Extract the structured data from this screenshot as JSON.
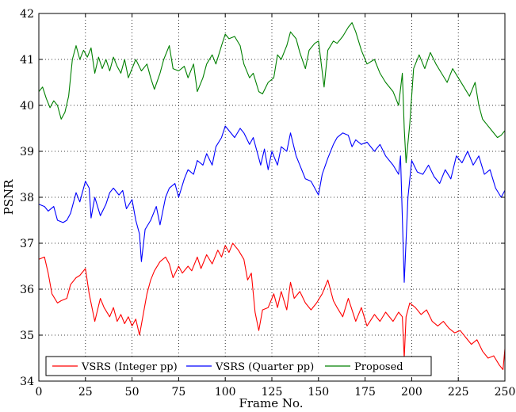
{
  "chart_data": {
    "type": "line",
    "xlabel": "Frame No.",
    "ylabel": "PSNR",
    "xlim": [
      0,
      250
    ],
    "ylim": [
      34,
      42
    ],
    "xticks": [
      0,
      25,
      50,
      75,
      100,
      125,
      150,
      175,
      200,
      225,
      250
    ],
    "yticks": [
      34,
      35,
      36,
      37,
      38,
      39,
      40,
      41,
      42
    ],
    "grid": true,
    "legend_position": "bottom",
    "series": [
      {
        "name": "VSRS (Integer pp)",
        "color": "#ff0000",
        "x": [
          0,
          3,
          5,
          7,
          10,
          12,
          15,
          17,
          20,
          22,
          25,
          27,
          30,
          33,
          35,
          38,
          40,
          42,
          44,
          46,
          48,
          50,
          52,
          54,
          56,
          58,
          60,
          62,
          65,
          68,
          70,
          72,
          75,
          77,
          80,
          82,
          85,
          87,
          90,
          93,
          96,
          98,
          100,
          102,
          104,
          107,
          110,
          112,
          114,
          116,
          118,
          120,
          123,
          126,
          128,
          130,
          133,
          135,
          137,
          140,
          143,
          146,
          149,
          152,
          155,
          158,
          160,
          163,
          166,
          170,
          173,
          176,
          180,
          183,
          186,
          190,
          193,
          195,
          196,
          197,
          199,
          202,
          205,
          208,
          211,
          214,
          217,
          220,
          223,
          226,
          229,
          232,
          235,
          238,
          241,
          244,
          247,
          249,
          250
        ],
        "values": [
          36.65,
          36.7,
          36.35,
          35.9,
          35.7,
          35.75,
          35.8,
          36.1,
          36.25,
          36.3,
          36.45,
          35.9,
          35.3,
          35.8,
          35.6,
          35.4,
          35.6,
          35.3,
          35.45,
          35.25,
          35.4,
          35.2,
          35.35,
          35.0,
          35.45,
          35.9,
          36.2,
          36.4,
          36.6,
          36.7,
          36.55,
          36.25,
          36.5,
          36.35,
          36.5,
          36.4,
          36.7,
          36.45,
          36.75,
          36.55,
          36.85,
          36.7,
          36.95,
          36.8,
          37.0,
          36.85,
          36.65,
          36.2,
          36.35,
          35.5,
          35.1,
          35.55,
          35.6,
          35.9,
          35.6,
          35.95,
          35.55,
          36.15,
          35.8,
          35.95,
          35.7,
          35.55,
          35.7,
          35.9,
          36.2,
          35.75,
          35.6,
          35.4,
          35.8,
          35.3,
          35.6,
          35.2,
          35.45,
          35.3,
          35.5,
          35.3,
          35.5,
          35.4,
          34.5,
          35.4,
          35.7,
          35.6,
          35.45,
          35.55,
          35.3,
          35.2,
          35.3,
          35.15,
          35.05,
          35.1,
          34.95,
          34.8,
          34.9,
          34.65,
          34.5,
          34.55,
          34.35,
          34.25,
          34.7
        ]
      },
      {
        "name": "VSRS (Quarter pp)",
        "color": "#0000ff",
        "x": [
          0,
          3,
          5,
          8,
          10,
          13,
          15,
          17,
          20,
          22,
          25,
          27,
          28,
          30,
          33,
          36,
          38,
          40,
          43,
          45,
          47,
          50,
          52,
          54,
          55,
          57,
          60,
          63,
          65,
          68,
          70,
          73,
          75,
          78,
          80,
          83,
          85,
          88,
          90,
          93,
          95,
          98,
          100,
          102,
          105,
          108,
          110,
          113,
          115,
          117,
          119,
          121,
          123,
          125,
          128,
          130,
          133,
          135,
          138,
          140,
          143,
          146,
          148,
          150,
          152,
          155,
          158,
          160,
          163,
          166,
          168,
          170,
          173,
          176,
          180,
          183,
          186,
          190,
          193,
          194,
          196,
          198,
          200,
          203,
          206,
          209,
          212,
          215,
          218,
          221,
          224,
          227,
          230,
          233,
          236,
          239,
          242,
          245,
          248,
          250
        ],
        "values": [
          37.85,
          37.8,
          37.7,
          37.8,
          37.5,
          37.45,
          37.5,
          37.65,
          38.1,
          37.9,
          38.35,
          38.2,
          37.55,
          38.0,
          37.6,
          37.85,
          38.1,
          38.2,
          38.05,
          38.15,
          37.75,
          37.95,
          37.5,
          37.2,
          36.6,
          37.3,
          37.5,
          37.8,
          37.4,
          38.0,
          38.2,
          38.3,
          38.0,
          38.4,
          38.6,
          38.5,
          38.8,
          38.7,
          38.95,
          38.7,
          39.1,
          39.3,
          39.55,
          39.45,
          39.3,
          39.5,
          39.4,
          39.15,
          39.3,
          39.0,
          38.7,
          39.05,
          38.6,
          39.0,
          38.7,
          39.1,
          39.0,
          39.4,
          38.9,
          38.7,
          38.4,
          38.35,
          38.2,
          38.05,
          38.5,
          38.85,
          39.15,
          39.3,
          39.4,
          39.35,
          39.1,
          39.25,
          39.15,
          39.2,
          39.0,
          39.15,
          38.9,
          38.7,
          38.5,
          38.9,
          36.15,
          38.0,
          38.8,
          38.55,
          38.5,
          38.7,
          38.45,
          38.3,
          38.6,
          38.4,
          38.9,
          38.75,
          39.0,
          38.7,
          38.9,
          38.5,
          38.6,
          38.2,
          38.0,
          38.15
        ]
      },
      {
        "name": "Proposed",
        "color": "#008000",
        "x": [
          0,
          2,
          4,
          6,
          8,
          10,
          12,
          14,
          16,
          18,
          20,
          22,
          24,
          26,
          28,
          30,
          32,
          34,
          36,
          38,
          40,
          42,
          44,
          46,
          48,
          50,
          52,
          55,
          58,
          60,
          62,
          65,
          67,
          70,
          72,
          75,
          78,
          80,
          83,
          85,
          88,
          90,
          93,
          95,
          98,
          100,
          102,
          105,
          108,
          110,
          113,
          115,
          118,
          120,
          123,
          126,
          128,
          130,
          133,
          135,
          138,
          140,
          143,
          145,
          148,
          150,
          153,
          155,
          158,
          160,
          163,
          166,
          168,
          170,
          173,
          176,
          180,
          183,
          186,
          190,
          193,
          195,
          196,
          197,
          199,
          201,
          204,
          207,
          210,
          213,
          216,
          219,
          222,
          225,
          228,
          231,
          234,
          236,
          238,
          240,
          243,
          246,
          248,
          250
        ],
        "values": [
          40.3,
          40.4,
          40.15,
          39.95,
          40.1,
          40.0,
          39.7,
          39.85,
          40.2,
          41.0,
          41.3,
          41.0,
          41.2,
          41.05,
          41.25,
          40.7,
          41.05,
          40.8,
          41.0,
          40.75,
          41.05,
          40.85,
          40.7,
          41.0,
          40.6,
          40.8,
          41.0,
          40.75,
          40.9,
          40.6,
          40.35,
          40.7,
          41.0,
          41.3,
          40.8,
          40.75,
          40.85,
          40.6,
          40.9,
          40.3,
          40.6,
          40.9,
          41.1,
          40.9,
          41.3,
          41.55,
          41.45,
          41.5,
          41.3,
          40.9,
          40.6,
          40.7,
          40.3,
          40.25,
          40.5,
          40.6,
          41.1,
          41.0,
          41.3,
          41.6,
          41.45,
          41.15,
          40.8,
          41.2,
          41.35,
          41.4,
          40.4,
          41.2,
          41.4,
          41.35,
          41.5,
          41.7,
          41.8,
          41.6,
          41.2,
          40.9,
          41.0,
          40.7,
          40.5,
          40.3,
          40.0,
          40.7,
          39.5,
          38.75,
          39.6,
          40.8,
          41.1,
          40.8,
          41.15,
          40.9,
          40.7,
          40.5,
          40.8,
          40.6,
          40.4,
          40.2,
          40.5,
          40.0,
          39.7,
          39.6,
          39.45,
          39.3,
          39.35,
          39.45
        ]
      }
    ]
  }
}
